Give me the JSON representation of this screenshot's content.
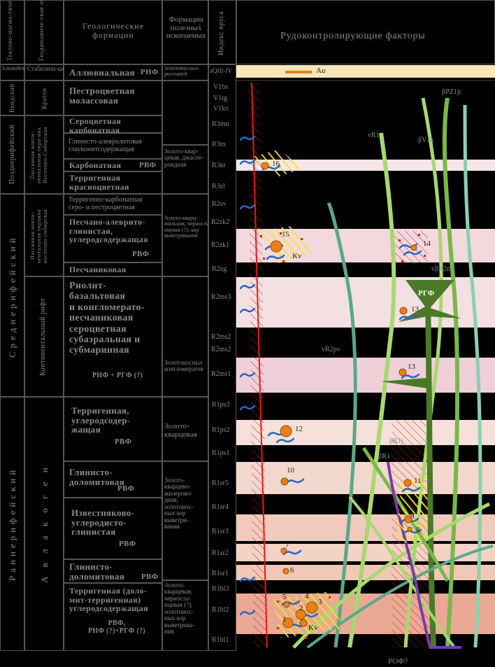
{
  "headers": {
    "col1": "Тектоно-магма-тический цикл",
    "col2": "Геодинамиче-ская обстановка",
    "col3": "Геологические формации",
    "col4": "Формации полезных ископаемых",
    "col5": "Индекс яруса",
    "col6": "Рудоконтролирующие факторы"
  },
  "legend": {
    "au": "Au"
  },
  "cycles": {
    "alpine": "Альпийский",
    "vendian": "Вендский",
    "late_riphean": "Позднерифейский",
    "middle_riphean": "Среднерифейский",
    "early_riphean": "Раннерифейский"
  },
  "settings": {
    "stabilization": "Стабилиза-ция",
    "kraton": "Кратон",
    "passive_margin_1": "Пассивная конти-нентальная окра-ина Восточно-Сибирская",
    "passive_margin_2": "Пассивная конти-нентальная окраина восточно-сибирская",
    "rift": "Континентальный рифт",
    "aulacogen": "А в л а к о г е н"
  },
  "formations": {
    "alluvial": "Аллювиальная",
    "alluvial_tag": "РНФ",
    "variegated_molasse": "Пестроцветная\nмолассовая",
    "gray_carbonate": "Сероцветная\nкарбонатная",
    "clay_silt": "Глинисто-алевролитовая\nглауконитсодержащая",
    "carbonate": "Карбонатная",
    "carbonate_tag": "РВФ",
    "terrigenous_red": "Терригенная\nкрасноцветная",
    "terr_carbonate": "Терригенно-карбонатная\nсеро- и пестроцветная",
    "sand_silt": "Песчано-алеврито-\nглинистая,\nуглеродсодержащая",
    "sand_silt_tag": "РВФ",
    "sandstone": "Песчаниковая",
    "rhyolite": "Риолит-\nбазальтовая\nи конгломерато-\nпесчаниковая\nсероцветная\nсубаэральная и\nсубмаринная",
    "rhyolite_tag": "РНФ + РГФ (?)",
    "terr_carbon": "Терригенная,\nуглеродсодер-\nжащая",
    "terr_carbon_tag": "РВФ",
    "clay_dolomite_1": "Глинисто-\nдоломитовая",
    "clay_dolomite_1_tag": "РВФ",
    "limestone": "Известняково-\nуглеродисто-\nглинистая",
    "limestone_tag": "РВФ",
    "clay_dolomite_2": "Глинисто-\nдоломитовая",
    "clay_dolomite_2_tag": "РВФ",
    "terr_dolomite": "Терригенная (доло-\nмит-терригенная)\nуглеродсодержащая",
    "terr_dolomite_tag": "РВФ,\nРНФ (?)+РГФ (?)"
  },
  "minerals": {
    "gold_placers": "Золотоносных\nроссыпей",
    "gold_quartz_1": "Золото-квар-\nцевая, джаспе-\nроидная",
    "gold_quartz_2": "Золото-кварц-\nжильная, черносла-\nнцевая (?); кор\nвыветривания",
    "gold_conglomerates": "Золотоносных\nконгломератов",
    "gold_quartz_3": "Золото-\nкварцевая",
    "gold_quartz_4": "Золото-\nкварцево-\nжилерово-\nдная,\nзолотонос-\nных кор\nвыветри-\nвания",
    "gold_quartz_5": "Золото-\nкварцевая,\nчерносла-\nнцевая (?),\nзолотонос-\nных кор\nвыветрива-\nния"
  },
  "indices": [
    "aQIII-IV",
    "V1bs",
    "V1tg",
    "V1kv",
    "R3mn",
    "R3tn",
    "R3kt",
    "R3zl",
    "R2sv",
    "R2zk2",
    "R2zk1",
    "R2zg",
    "R2ms3",
    "R2ms2",
    "R2ms2",
    "R2ms1",
    "R1ps3",
    "R1ps2",
    "R1ps1",
    "R1sr5",
    "R1sr4",
    "R1sr3",
    "R1sr2",
    "R1sr1",
    "R1bl3",
    "R1bl2",
    "R1bl1"
  ],
  "factor_labels": {
    "bpz": "βPZ1jr",
    "vr1": "vR1",
    "bvk": "βV1k",
    "vbrms": "vβR2ms",
    "rgf": "РГФ",
    "vrpv": "vR2pv",
    "br1j": "βR1j",
    "br1": "βR1",
    "kv1": "Kv",
    "kv2": "Kv",
    "rof": "РОФ?"
  },
  "deposits": [
    "16",
    "15",
    "14",
    "13",
    "13",
    "12",
    "11",
    "10",
    "9",
    "8",
    "7",
    "6",
    "5",
    "4",
    "3",
    "2",
    "1"
  ],
  "colors": {
    "gold": "#e8801a",
    "fault": "#e81818",
    "hatch": "#c7191e",
    "yellow_hatch": "#f5e61a",
    "belt_light": "#a8d870",
    "belt_mid": "#7ab848",
    "belt_dark": "#4a7a28",
    "belt_teal": "#5aa88a",
    "dike_purple": "#7a3aa8"
  }
}
